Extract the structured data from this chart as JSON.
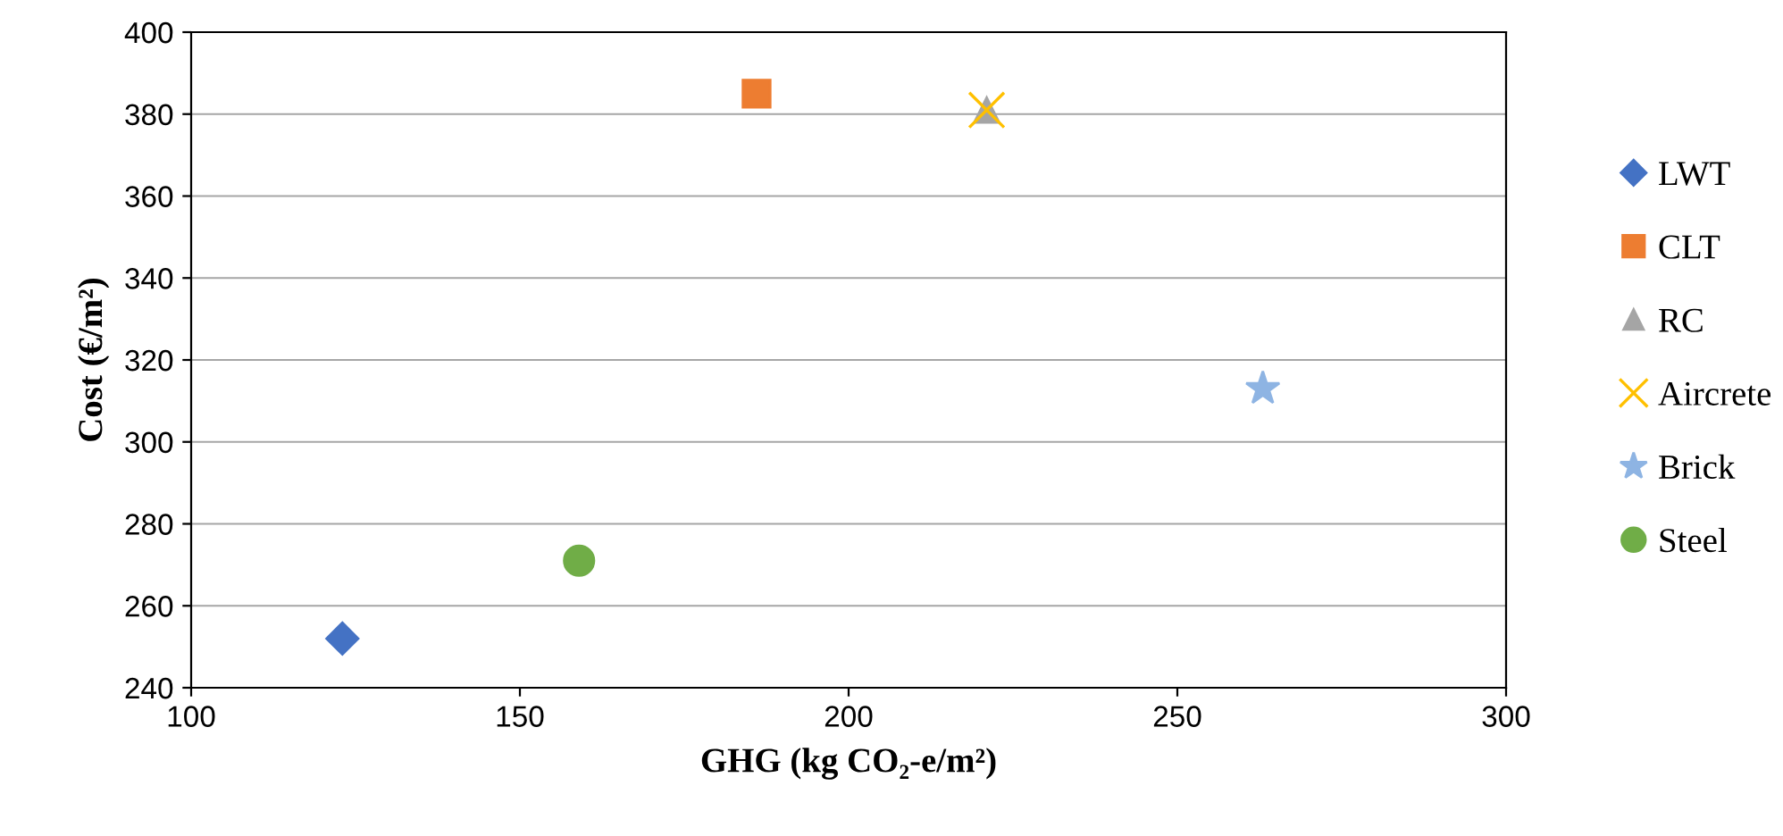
{
  "chart_data": {
    "type": "scatter",
    "xlabel": "GHG (kg CO₂-e/m²)",
    "ylabel": "Cost (€/m²)",
    "xlim": [
      100,
      300
    ],
    "xticks": [
      100,
      150,
      200,
      250,
      300
    ],
    "ylim": [
      240,
      400
    ],
    "yticks": [
      240,
      260,
      280,
      300,
      320,
      340,
      360,
      380,
      400
    ],
    "grid": "y",
    "legend": "right",
    "series": [
      {
        "name": "LWT",
        "color": "#4472c4",
        "marker": "diamond",
        "x": [
          123
        ],
        "values": [
          252
        ]
      },
      {
        "name": "CLT",
        "color": "#ed7d31",
        "marker": "square",
        "x": [
          186
        ],
        "values": [
          385
        ]
      },
      {
        "name": "RC",
        "color": "#a5a5a5",
        "marker": "triangle",
        "x": [
          221
        ],
        "values": [
          381
        ]
      },
      {
        "name": "Aircrete",
        "color": "#ffc000",
        "marker": "cross",
        "x": [
          221
        ],
        "values": [
          381
        ]
      },
      {
        "name": "Brick",
        "color": "#8eb4e3",
        "marker": "star",
        "x": [
          263
        ],
        "values": [
          313
        ]
      },
      {
        "name": "Steel",
        "color": "#70ad47",
        "marker": "circle",
        "x": [
          159
        ],
        "values": [
          271
        ]
      }
    ]
  }
}
